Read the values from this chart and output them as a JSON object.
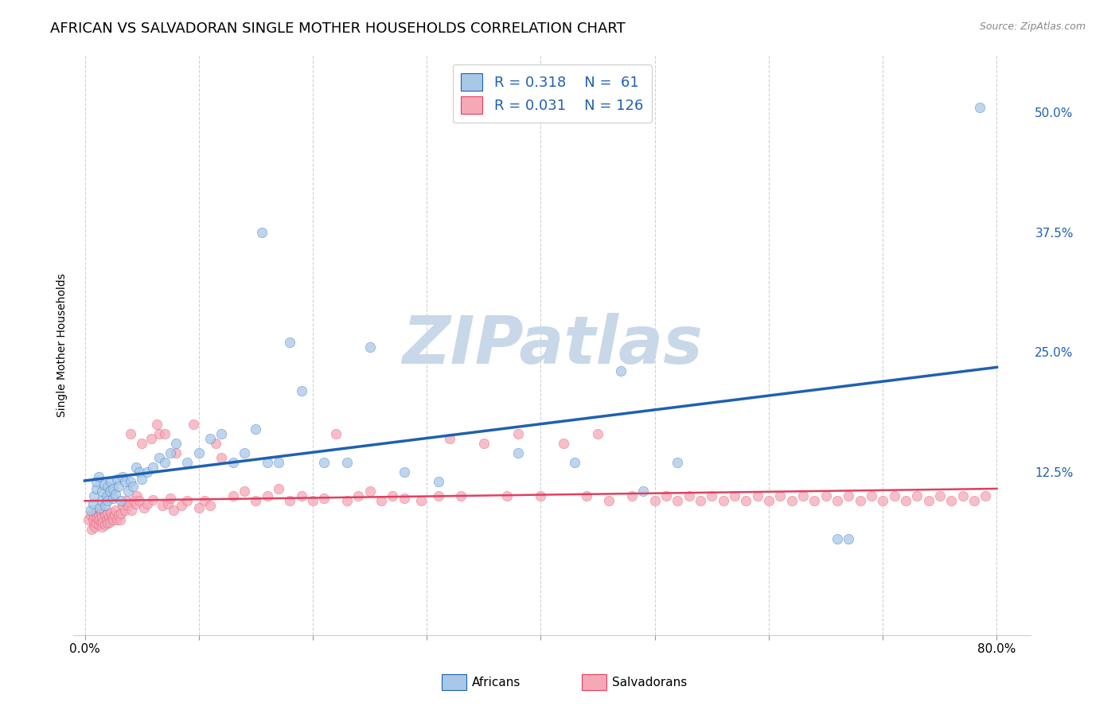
{
  "title": "AFRICAN VS SALVADORAN SINGLE MOTHER HOUSEHOLDS CORRELATION CHART",
  "source": "Source: ZipAtlas.com",
  "ylabel": "Single Mother Households",
  "african_R": 0.318,
  "african_N": 61,
  "salvadoran_R": 0.031,
  "salvadoran_N": 126,
  "african_color": "#a8c8e8",
  "salvadoran_color": "#f4a8b8",
  "african_line_color": "#2060b0",
  "salvadoran_line_color": "#e04060",
  "watermark_color": "#c8d8e8",
  "background_color": "#ffffff",
  "grid_color": "#cccccc",
  "title_fontsize": 13,
  "axis_label_fontsize": 10,
  "tick_fontsize": 11,
  "legend_fontsize": 13,
  "right_tick_color": "#2060b0",
  "african_scatter_x": [
    0.005,
    0.007,
    0.008,
    0.01,
    0.01,
    0.012,
    0.013,
    0.015,
    0.015,
    0.017,
    0.018,
    0.019,
    0.02,
    0.02,
    0.022,
    0.023,
    0.025,
    0.025,
    0.027,
    0.028,
    0.03,
    0.032,
    0.033,
    0.035,
    0.038,
    0.04,
    0.042,
    0.045,
    0.048,
    0.05,
    0.055,
    0.06,
    0.065,
    0.07,
    0.075,
    0.08,
    0.09,
    0.1,
    0.11,
    0.12,
    0.13,
    0.14,
    0.15,
    0.16,
    0.17,
    0.18,
    0.19,
    0.21,
    0.23,
    0.25,
    0.28,
    0.31,
    0.38,
    0.43,
    0.47,
    0.49,
    0.52,
    0.66,
    0.67,
    0.155,
    0.785
  ],
  "african_scatter_y": [
    0.085,
    0.092,
    0.1,
    0.108,
    0.115,
    0.12,
    0.088,
    0.095,
    0.105,
    0.112,
    0.09,
    0.1,
    0.095,
    0.11,
    0.105,
    0.115,
    0.098,
    0.108,
    0.102,
    0.118,
    0.11,
    0.095,
    0.12,
    0.115,
    0.105,
    0.115,
    0.11,
    0.13,
    0.125,
    0.118,
    0.125,
    0.13,
    0.14,
    0.135,
    0.145,
    0.155,
    0.135,
    0.145,
    0.16,
    0.165,
    0.135,
    0.145,
    0.17,
    0.135,
    0.135,
    0.26,
    0.21,
    0.135,
    0.135,
    0.255,
    0.125,
    0.115,
    0.145,
    0.135,
    0.23,
    0.105,
    0.135,
    0.055,
    0.055,
    0.375,
    0.505
  ],
  "salvadoran_scatter_x": [
    0.003,
    0.005,
    0.006,
    0.007,
    0.008,
    0.008,
    0.009,
    0.01,
    0.01,
    0.011,
    0.012,
    0.012,
    0.013,
    0.013,
    0.014,
    0.014,
    0.015,
    0.015,
    0.016,
    0.017,
    0.018,
    0.018,
    0.019,
    0.02,
    0.02,
    0.021,
    0.022,
    0.023,
    0.024,
    0.025,
    0.026,
    0.027,
    0.028,
    0.03,
    0.031,
    0.032,
    0.033,
    0.035,
    0.036,
    0.038,
    0.04,
    0.041,
    0.043,
    0.045,
    0.046,
    0.048,
    0.05,
    0.052,
    0.055,
    0.058,
    0.06,
    0.063,
    0.065,
    0.068,
    0.07,
    0.073,
    0.075,
    0.078,
    0.08,
    0.085,
    0.09,
    0.095,
    0.1,
    0.105,
    0.11,
    0.115,
    0.12,
    0.13,
    0.14,
    0.15,
    0.16,
    0.17,
    0.18,
    0.19,
    0.2,
    0.21,
    0.22,
    0.23,
    0.24,
    0.25,
    0.26,
    0.27,
    0.28,
    0.295,
    0.31,
    0.32,
    0.33,
    0.35,
    0.37,
    0.38,
    0.4,
    0.42,
    0.44,
    0.45,
    0.46,
    0.48,
    0.5,
    0.51,
    0.52,
    0.53,
    0.54,
    0.55,
    0.56,
    0.57,
    0.58,
    0.59,
    0.6,
    0.61,
    0.62,
    0.63,
    0.64,
    0.65,
    0.66,
    0.67,
    0.68,
    0.69,
    0.7,
    0.71,
    0.72,
    0.73,
    0.74,
    0.75,
    0.76,
    0.77,
    0.78,
    0.79
  ],
  "salvadoran_scatter_y": [
    0.075,
    0.08,
    0.065,
    0.075,
    0.07,
    0.08,
    0.068,
    0.072,
    0.082,
    0.078,
    0.07,
    0.08,
    0.075,
    0.085,
    0.072,
    0.082,
    0.068,
    0.078,
    0.073,
    0.083,
    0.07,
    0.08,
    0.075,
    0.072,
    0.082,
    0.078,
    0.073,
    0.083,
    0.078,
    0.075,
    0.08,
    0.085,
    0.075,
    0.08,
    0.075,
    0.082,
    0.09,
    0.085,
    0.095,
    0.09,
    0.165,
    0.085,
    0.095,
    0.092,
    0.1,
    0.095,
    0.155,
    0.088,
    0.092,
    0.16,
    0.096,
    0.175,
    0.165,
    0.09,
    0.165,
    0.092,
    0.098,
    0.085,
    0.145,
    0.09,
    0.095,
    0.175,
    0.088,
    0.095,
    0.09,
    0.155,
    0.14,
    0.1,
    0.105,
    0.095,
    0.1,
    0.108,
    0.095,
    0.1,
    0.095,
    0.098,
    0.165,
    0.095,
    0.1,
    0.105,
    0.095,
    0.1,
    0.098,
    0.095,
    0.1,
    0.16,
    0.1,
    0.155,
    0.1,
    0.165,
    0.1,
    0.155,
    0.1,
    0.165,
    0.095,
    0.1,
    0.095,
    0.1,
    0.095,
    0.1,
    0.095,
    0.1,
    0.095,
    0.1,
    0.095,
    0.1,
    0.095,
    0.1,
    0.095,
    0.1,
    0.095,
    0.1,
    0.095,
    0.1,
    0.095,
    0.1,
    0.095,
    0.1,
    0.095,
    0.1,
    0.095,
    0.1,
    0.095,
    0.1,
    0.095,
    0.1
  ]
}
